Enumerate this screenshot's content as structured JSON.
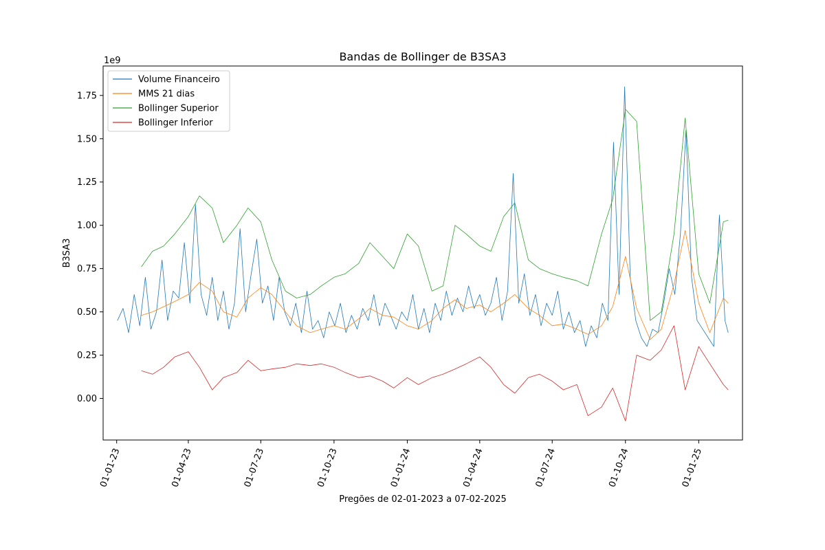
{
  "chart_data": {
    "type": "line",
    "title": "Bandas de Bollinger de B3SA3",
    "xlabel": "Pregões de 02-01-2023 a 07-02-2025",
    "ylabel": "B3SA3",
    "y_offset_label": "1e9",
    "y_scale": 1000000000,
    "ylim": [
      -0.24,
      1.92
    ],
    "xlim": [
      "2022-12-15",
      "2025-02-25"
    ],
    "grid": false,
    "legend_position": "upper-left",
    "x_ticks": [
      {
        "date": "2023-01-01",
        "label": "01-01-23"
      },
      {
        "date": "2023-04-01",
        "label": "01-04-23"
      },
      {
        "date": "2023-07-01",
        "label": "01-07-23"
      },
      {
        "date": "2023-10-01",
        "label": "01-10-23"
      },
      {
        "date": "2024-01-01",
        "label": "01-01-24"
      },
      {
        "date": "2024-04-01",
        "label": "01-04-24"
      },
      {
        "date": "2024-07-01",
        "label": "01-07-24"
      },
      {
        "date": "2024-10-01",
        "label": "01-10-24"
      },
      {
        "date": "2025-01-01",
        "label": "01-01-25"
      }
    ],
    "y_ticks": [
      {
        "value": 0.0,
        "label": "0.00"
      },
      {
        "value": 0.25,
        "label": "0.25"
      },
      {
        "value": 0.5,
        "label": "0.50"
      },
      {
        "value": 0.75,
        "label": "0.75"
      },
      {
        "value": 1.0,
        "label": "1.00"
      },
      {
        "value": 1.25,
        "label": "1.25"
      },
      {
        "value": 1.5,
        "label": "1.50"
      },
      {
        "value": 1.75,
        "label": "1.75"
      }
    ],
    "series": [
      {
        "name": "Volume Financeiro",
        "color": "#1f77b4",
        "points": [
          [
            "2023-01-02",
            0.45
          ],
          [
            "2023-01-09",
            0.52
          ],
          [
            "2023-01-16",
            0.38
          ],
          [
            "2023-01-23",
            0.6
          ],
          [
            "2023-01-30",
            0.42
          ],
          [
            "2023-02-06",
            0.7
          ],
          [
            "2023-02-13",
            0.4
          ],
          [
            "2023-02-20",
            0.5
          ],
          [
            "2023-02-27",
            0.8
          ],
          [
            "2023-03-06",
            0.45
          ],
          [
            "2023-03-13",
            0.62
          ],
          [
            "2023-03-20",
            0.58
          ],
          [
            "2023-03-27",
            0.9
          ],
          [
            "2023-04-03",
            0.55
          ],
          [
            "2023-04-10",
            1.12
          ],
          [
            "2023-04-17",
            0.6
          ],
          [
            "2023-04-24",
            0.48
          ],
          [
            "2023-05-01",
            0.7
          ],
          [
            "2023-05-08",
            0.45
          ],
          [
            "2023-05-15",
            0.62
          ],
          [
            "2023-05-22",
            0.4
          ],
          [
            "2023-05-29",
            0.55
          ],
          [
            "2023-06-05",
            0.98
          ],
          [
            "2023-06-12",
            0.5
          ],
          [
            "2023-06-19",
            0.72
          ],
          [
            "2023-06-26",
            0.92
          ],
          [
            "2023-07-03",
            0.55
          ],
          [
            "2023-07-10",
            0.65
          ],
          [
            "2023-07-17",
            0.45
          ],
          [
            "2023-07-24",
            0.7
          ],
          [
            "2023-07-31",
            0.5
          ],
          [
            "2023-08-07",
            0.42
          ],
          [
            "2023-08-14",
            0.55
          ],
          [
            "2023-08-21",
            0.38
          ],
          [
            "2023-08-28",
            0.62
          ],
          [
            "2023-09-04",
            0.4
          ],
          [
            "2023-09-11",
            0.45
          ],
          [
            "2023-09-18",
            0.35
          ],
          [
            "2023-09-25",
            0.5
          ],
          [
            "2023-10-02",
            0.42
          ],
          [
            "2023-10-09",
            0.55
          ],
          [
            "2023-10-16",
            0.38
          ],
          [
            "2023-10-23",
            0.48
          ],
          [
            "2023-10-30",
            0.4
          ],
          [
            "2023-11-06",
            0.52
          ],
          [
            "2023-11-13",
            0.45
          ],
          [
            "2023-11-20",
            0.6
          ],
          [
            "2023-11-27",
            0.42
          ],
          [
            "2023-12-04",
            0.55
          ],
          [
            "2023-12-11",
            0.48
          ],
          [
            "2023-12-18",
            0.4
          ],
          [
            "2023-12-25",
            0.5
          ],
          [
            "2024-01-01",
            0.45
          ],
          [
            "2024-01-08",
            0.6
          ],
          [
            "2024-01-15",
            0.4
          ],
          [
            "2024-01-22",
            0.52
          ],
          [
            "2024-01-29",
            0.38
          ],
          [
            "2024-02-05",
            0.55
          ],
          [
            "2024-02-12",
            0.45
          ],
          [
            "2024-02-19",
            0.62
          ],
          [
            "2024-02-26",
            0.48
          ],
          [
            "2024-03-04",
            0.58
          ],
          [
            "2024-03-11",
            0.5
          ],
          [
            "2024-03-18",
            0.65
          ],
          [
            "2024-03-25",
            0.52
          ],
          [
            "2024-04-01",
            0.6
          ],
          [
            "2024-04-08",
            0.48
          ],
          [
            "2024-04-15",
            0.55
          ],
          [
            "2024-04-22",
            0.7
          ],
          [
            "2024-04-29",
            0.45
          ],
          [
            "2024-05-06",
            0.62
          ],
          [
            "2024-05-13",
            1.3
          ],
          [
            "2024-05-20",
            0.55
          ],
          [
            "2024-05-27",
            0.72
          ],
          [
            "2024-06-03",
            0.48
          ],
          [
            "2024-06-10",
            0.6
          ],
          [
            "2024-06-17",
            0.42
          ],
          [
            "2024-06-24",
            0.55
          ],
          [
            "2024-07-01",
            0.48
          ],
          [
            "2024-07-08",
            0.62
          ],
          [
            "2024-07-15",
            0.4
          ],
          [
            "2024-07-22",
            0.5
          ],
          [
            "2024-07-29",
            0.38
          ],
          [
            "2024-08-05",
            0.45
          ],
          [
            "2024-08-12",
            0.3
          ],
          [
            "2024-08-19",
            0.42
          ],
          [
            "2024-08-26",
            0.35
          ],
          [
            "2024-09-02",
            0.55
          ],
          [
            "2024-09-09",
            0.45
          ],
          [
            "2024-09-16",
            1.48
          ],
          [
            "2024-09-23",
            0.6
          ],
          [
            "2024-09-30",
            1.8
          ],
          [
            "2024-10-07",
            0.7
          ],
          [
            "2024-10-14",
            0.45
          ],
          [
            "2024-10-21",
            0.35
          ],
          [
            "2024-10-28",
            0.3
          ],
          [
            "2024-11-04",
            0.4
          ],
          [
            "2024-11-11",
            0.38
          ],
          [
            "2024-11-18",
            0.55
          ],
          [
            "2024-11-25",
            0.75
          ],
          [
            "2024-12-02",
            0.6
          ],
          [
            "2024-12-09",
            0.95
          ],
          [
            "2024-12-16",
            1.55
          ],
          [
            "2024-12-23",
            0.7
          ],
          [
            "2024-12-30",
            0.45
          ],
          [
            "2025-01-06",
            0.4
          ],
          [
            "2025-01-13",
            0.35
          ],
          [
            "2025-01-20",
            0.3
          ],
          [
            "2025-01-27",
            1.06
          ],
          [
            "2025-02-03",
            0.45
          ],
          [
            "2025-02-07",
            0.38
          ]
        ]
      },
      {
        "name": "MMS 21 dias",
        "color": "#ff7f0e",
        "points": [
          [
            "2023-02-01",
            0.48
          ],
          [
            "2023-02-15",
            0.5
          ],
          [
            "2023-03-01",
            0.53
          ],
          [
            "2023-03-15",
            0.56
          ],
          [
            "2023-04-01",
            0.6
          ],
          [
            "2023-04-15",
            0.67
          ],
          [
            "2023-05-01",
            0.62
          ],
          [
            "2023-05-15",
            0.5
          ],
          [
            "2023-06-01",
            0.47
          ],
          [
            "2023-06-15",
            0.58
          ],
          [
            "2023-07-01",
            0.64
          ],
          [
            "2023-07-15",
            0.6
          ],
          [
            "2023-08-01",
            0.5
          ],
          [
            "2023-08-15",
            0.42
          ],
          [
            "2023-09-01",
            0.38
          ],
          [
            "2023-09-15",
            0.4
          ],
          [
            "2023-10-01",
            0.42
          ],
          [
            "2023-10-15",
            0.4
          ],
          [
            "2023-11-01",
            0.46
          ],
          [
            "2023-11-15",
            0.52
          ],
          [
            "2023-12-01",
            0.48
          ],
          [
            "2023-12-15",
            0.47
          ],
          [
            "2024-01-01",
            0.42
          ],
          [
            "2024-01-15",
            0.4
          ],
          [
            "2024-02-01",
            0.45
          ],
          [
            "2024-02-15",
            0.52
          ],
          [
            "2024-03-01",
            0.57
          ],
          [
            "2024-03-15",
            0.52
          ],
          [
            "2024-04-01",
            0.54
          ],
          [
            "2024-04-15",
            0.5
          ],
          [
            "2024-05-01",
            0.55
          ],
          [
            "2024-05-15",
            0.6
          ],
          [
            "2024-06-01",
            0.52
          ],
          [
            "2024-06-15",
            0.48
          ],
          [
            "2024-07-01",
            0.42
          ],
          [
            "2024-07-15",
            0.43
          ],
          [
            "2024-08-01",
            0.4
          ],
          [
            "2024-08-15",
            0.37
          ],
          [
            "2024-09-01",
            0.42
          ],
          [
            "2024-09-15",
            0.53
          ],
          [
            "2024-10-01",
            0.82
          ],
          [
            "2024-10-15",
            0.52
          ],
          [
            "2024-11-01",
            0.34
          ],
          [
            "2024-11-15",
            0.4
          ],
          [
            "2024-12-01",
            0.66
          ],
          [
            "2024-12-15",
            0.97
          ],
          [
            "2025-01-01",
            0.55
          ],
          [
            "2025-01-15",
            0.38
          ],
          [
            "2025-02-01",
            0.58
          ],
          [
            "2025-02-07",
            0.55
          ]
        ]
      },
      {
        "name": "Bollinger Superior",
        "color": "#2ca02c",
        "points": [
          [
            "2023-02-01",
            0.76
          ],
          [
            "2023-02-15",
            0.85
          ],
          [
            "2023-03-01",
            0.88
          ],
          [
            "2023-03-15",
            0.95
          ],
          [
            "2023-04-01",
            1.05
          ],
          [
            "2023-04-15",
            1.17
          ],
          [
            "2023-05-01",
            1.1
          ],
          [
            "2023-05-15",
            0.9
          ],
          [
            "2023-06-01",
            1.0
          ],
          [
            "2023-06-15",
            1.1
          ],
          [
            "2023-07-01",
            1.02
          ],
          [
            "2023-07-15",
            0.8
          ],
          [
            "2023-08-01",
            0.62
          ],
          [
            "2023-08-15",
            0.58
          ],
          [
            "2023-09-01",
            0.6
          ],
          [
            "2023-09-15",
            0.65
          ],
          [
            "2023-10-01",
            0.7
          ],
          [
            "2023-10-15",
            0.72
          ],
          [
            "2023-11-01",
            0.78
          ],
          [
            "2023-11-15",
            0.9
          ],
          [
            "2023-12-01",
            0.82
          ],
          [
            "2023-12-15",
            0.75
          ],
          [
            "2024-01-01",
            0.95
          ],
          [
            "2024-01-15",
            0.88
          ],
          [
            "2024-02-01",
            0.62
          ],
          [
            "2024-02-15",
            0.65
          ],
          [
            "2024-03-01",
            1.0
          ],
          [
            "2024-03-15",
            0.95
          ],
          [
            "2024-04-01",
            0.88
          ],
          [
            "2024-04-15",
            0.85
          ],
          [
            "2024-05-01",
            1.05
          ],
          [
            "2024-05-15",
            1.13
          ],
          [
            "2024-06-01",
            0.8
          ],
          [
            "2024-06-15",
            0.75
          ],
          [
            "2024-07-01",
            0.72
          ],
          [
            "2024-07-15",
            0.7
          ],
          [
            "2024-08-01",
            0.68
          ],
          [
            "2024-08-15",
            0.65
          ],
          [
            "2024-09-01",
            0.95
          ],
          [
            "2024-09-15",
            1.15
          ],
          [
            "2024-10-01",
            1.67
          ],
          [
            "2024-10-15",
            1.6
          ],
          [
            "2024-11-01",
            0.45
          ],
          [
            "2024-11-15",
            0.5
          ],
          [
            "2024-12-01",
            0.95
          ],
          [
            "2024-12-15",
            1.62
          ],
          [
            "2025-01-01",
            0.72
          ],
          [
            "2025-01-15",
            0.55
          ],
          [
            "2025-02-01",
            1.02
          ],
          [
            "2025-02-07",
            1.03
          ]
        ]
      },
      {
        "name": "Bollinger Inferior",
        "color": "#d62728",
        "points": [
          [
            "2023-02-01",
            0.16
          ],
          [
            "2023-02-15",
            0.14
          ],
          [
            "2023-03-01",
            0.18
          ],
          [
            "2023-03-15",
            0.24
          ],
          [
            "2023-04-01",
            0.27
          ],
          [
            "2023-04-15",
            0.18
          ],
          [
            "2023-05-01",
            0.05
          ],
          [
            "2023-05-15",
            0.12
          ],
          [
            "2023-06-01",
            0.15
          ],
          [
            "2023-06-15",
            0.22
          ],
          [
            "2023-07-01",
            0.16
          ],
          [
            "2023-07-15",
            0.17
          ],
          [
            "2023-08-01",
            0.18
          ],
          [
            "2023-08-15",
            0.2
          ],
          [
            "2023-09-01",
            0.19
          ],
          [
            "2023-09-15",
            0.2
          ],
          [
            "2023-10-01",
            0.18
          ],
          [
            "2023-10-15",
            0.15
          ],
          [
            "2023-11-01",
            0.12
          ],
          [
            "2023-11-15",
            0.13
          ],
          [
            "2023-12-01",
            0.1
          ],
          [
            "2023-12-15",
            0.06
          ],
          [
            "2024-01-01",
            0.12
          ],
          [
            "2024-01-15",
            0.08
          ],
          [
            "2024-02-01",
            0.12
          ],
          [
            "2024-02-15",
            0.14
          ],
          [
            "2024-03-01",
            0.17
          ],
          [
            "2024-03-15",
            0.2
          ],
          [
            "2024-04-01",
            0.24
          ],
          [
            "2024-04-15",
            0.18
          ],
          [
            "2024-05-01",
            0.08
          ],
          [
            "2024-05-15",
            0.03
          ],
          [
            "2024-06-01",
            0.12
          ],
          [
            "2024-06-15",
            0.14
          ],
          [
            "2024-07-01",
            0.1
          ],
          [
            "2024-07-15",
            0.05
          ],
          [
            "2024-08-01",
            0.08
          ],
          [
            "2024-08-15",
            -0.1
          ],
          [
            "2024-09-01",
            -0.05
          ],
          [
            "2024-09-15",
            0.06
          ],
          [
            "2024-10-01",
            -0.13
          ],
          [
            "2024-10-15",
            0.25
          ],
          [
            "2024-11-01",
            0.22
          ],
          [
            "2024-11-15",
            0.28
          ],
          [
            "2024-12-01",
            0.42
          ],
          [
            "2024-12-15",
            0.05
          ],
          [
            "2025-01-01",
            0.3
          ],
          [
            "2025-01-15",
            0.2
          ],
          [
            "2025-02-01",
            0.08
          ],
          [
            "2025-02-07",
            0.05
          ]
        ]
      }
    ]
  }
}
